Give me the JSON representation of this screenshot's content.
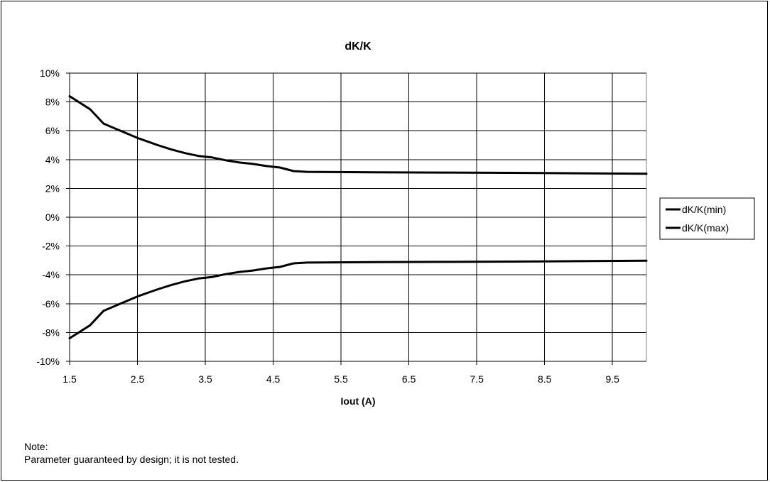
{
  "chart_data": {
    "type": "line",
    "title": "dK/K",
    "xlabel": "Iout (A)",
    "ylabel": "",
    "xlim": [
      1.5,
      10
    ],
    "ylim": [
      -10,
      10
    ],
    "x_ticks": [
      "1.5",
      "2.5",
      "3.5",
      "4.5",
      "5.5",
      "6.5",
      "7.5",
      "8.5",
      "9.5"
    ],
    "x_tick_values": [
      1.5,
      2.5,
      3.5,
      4.5,
      5.5,
      6.5,
      7.5,
      8.5,
      9.5
    ],
    "y_ticks": [
      "10%",
      "8%",
      "6%",
      "4%",
      "2%",
      "0%",
      "-2%",
      "-4%",
      "-6%",
      "-8%",
      "-10%"
    ],
    "y_tick_values": [
      10,
      8,
      6,
      4,
      2,
      0,
      -2,
      -4,
      -6,
      -8,
      -10
    ],
    "grid": true,
    "legend": "right",
    "line_color": "#000000",
    "series": [
      {
        "name": "dK/K(min)",
        "x": [
          1.5,
          1.8,
          2.0,
          2.2,
          2.5,
          2.8,
          3.0,
          3.2,
          3.4,
          3.6,
          3.8,
          4.0,
          4.2,
          4.4,
          4.6,
          4.8,
          5.0,
          6.0,
          7.0,
          8.0,
          9.0,
          10.0
        ],
        "values": [
          -8.4,
          -7.5,
          -6.5,
          -6.1,
          -5.5,
          -5.0,
          -4.7,
          -4.45,
          -4.25,
          -4.15,
          -3.95,
          -3.8,
          -3.7,
          -3.55,
          -3.45,
          -3.2,
          -3.15,
          -3.12,
          -3.1,
          -3.08,
          -3.05,
          -3.02
        ]
      },
      {
        "name": "dK/K(max)",
        "x": [
          1.5,
          1.8,
          2.0,
          2.2,
          2.5,
          2.8,
          3.0,
          3.2,
          3.4,
          3.6,
          3.8,
          4.0,
          4.2,
          4.4,
          4.6,
          4.8,
          5.0,
          6.0,
          7.0,
          8.0,
          9.0,
          10.0
        ],
        "values": [
          8.4,
          7.5,
          6.5,
          6.1,
          5.5,
          5.0,
          4.7,
          4.45,
          4.25,
          4.15,
          3.95,
          3.8,
          3.7,
          3.55,
          3.45,
          3.2,
          3.15,
          3.12,
          3.1,
          3.08,
          3.05,
          3.02
        ]
      }
    ]
  },
  "note": {
    "heading": "Note:",
    "text": "Parameter guaranteed by design; it is not tested."
  }
}
